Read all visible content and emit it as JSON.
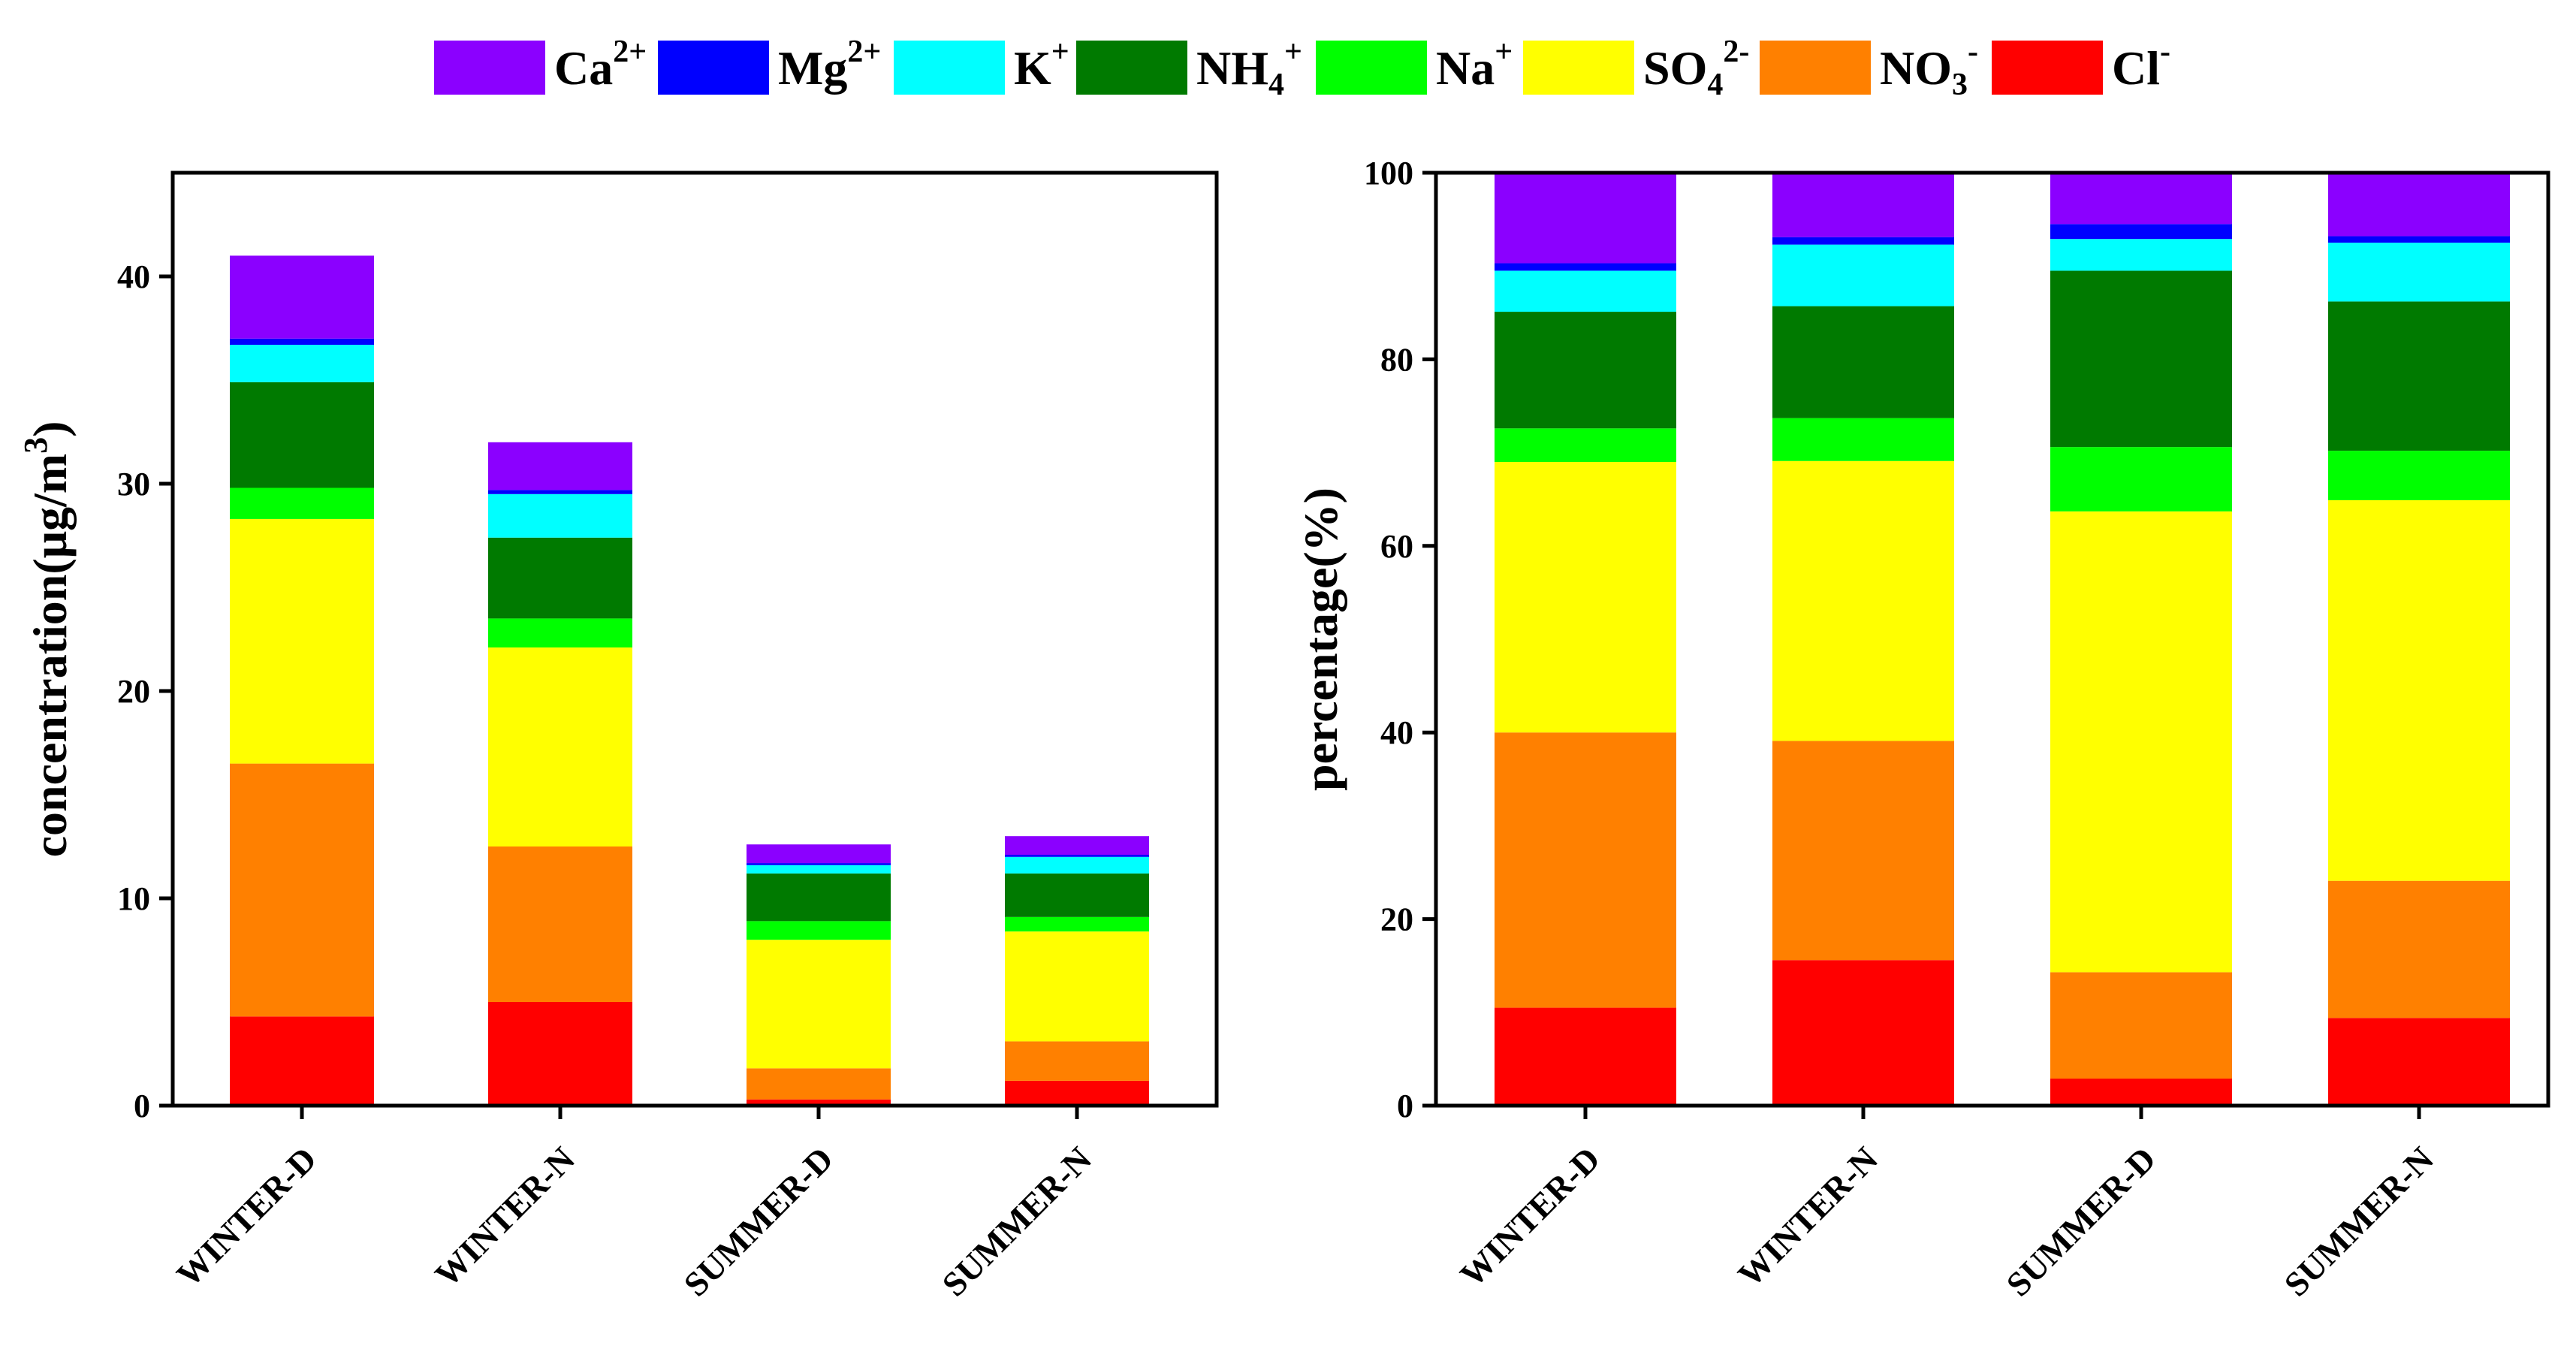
{
  "legend": [
    {
      "base": "Ca",
      "sub": "",
      "sup": "2+",
      "color": "#8B00FF"
    },
    {
      "base": "Mg",
      "sub": "",
      "sup": "2+",
      "color": "#0000FF"
    },
    {
      "base": "K",
      "sub": "",
      "sup": "+",
      "color": "#00FFFF"
    },
    {
      "base": "NH",
      "sub": "4",
      "sup": "+",
      "color": "#007A00"
    },
    {
      "base": "Na",
      "sub": "",
      "sup": "+",
      "color": "#00FF00"
    },
    {
      "base": "SO",
      "sub": "4",
      "sup": "2-",
      "color": "#FFFF00"
    },
    {
      "base": "NO",
      "sub": "3",
      "sup": "-",
      "color": "#FF8000"
    },
    {
      "base": "Cl",
      "sub": "",
      "sup": "-",
      "color": "#FF0000"
    }
  ],
  "chart_data": [
    {
      "type": "bar",
      "stacked": true,
      "title": "",
      "xlabel": "",
      "ylabel": "concentration(μg/m",
      "ylabel_sup": "3",
      "ylabel_tail": ")",
      "ylim": [
        0,
        45
      ],
      "yticks": [
        0,
        10,
        20,
        30,
        40
      ],
      "categories": [
        "WINTER-D",
        "WINTER-N",
        "SUMMER-D",
        "SUMMER-N"
      ],
      "series": [
        {
          "name": "Cl-",
          "color": "#FF0000",
          "values": [
            4.3,
            5.0,
            0.3,
            1.2
          ]
        },
        {
          "name": "NO3-",
          "color": "#FF8000",
          "values": [
            12.2,
            7.5,
            1.5,
            1.9
          ]
        },
        {
          "name": "SO42-",
          "color": "#FFFF00",
          "values": [
            11.8,
            9.6,
            6.2,
            5.3
          ]
        },
        {
          "name": "Na+",
          "color": "#00FF00",
          "values": [
            1.5,
            1.4,
            0.9,
            0.7
          ]
        },
        {
          "name": "NH4+",
          "color": "#007A00",
          "values": [
            5.1,
            3.9,
            2.3,
            2.1
          ]
        },
        {
          "name": "K+",
          "color": "#00FFFF",
          "values": [
            1.8,
            2.1,
            0.4,
            0.8
          ]
        },
        {
          "name": "Mg2+",
          "color": "#0000FF",
          "values": [
            0.3,
            0.2,
            0.1,
            0.1
          ]
        },
        {
          "name": "Ca2+",
          "color": "#8B00FF",
          "values": [
            4.0,
            2.3,
            0.9,
            0.9
          ]
        }
      ]
    },
    {
      "type": "bar",
      "stacked": true,
      "title": "",
      "xlabel": "",
      "ylabel": "percentage(%)",
      "ylim": [
        0,
        100
      ],
      "yticks": [
        0,
        20,
        40,
        60,
        80,
        100
      ],
      "categories": [
        "WINTER-D",
        "WINTER-N",
        "SUMMER-D",
        "SUMMER-N"
      ],
      "series": [
        {
          "name": "Cl-",
          "color": "#FF0000",
          "values": [
            10.5,
            15.6,
            2.9,
            9.4
          ]
        },
        {
          "name": "NO3-",
          "color": "#FF8000",
          "values": [
            29.5,
            23.5,
            11.4,
            14.7
          ]
        },
        {
          "name": "SO42-",
          "color": "#FFFF00",
          "values": [
            29.0,
            30.0,
            49.4,
            40.8
          ]
        },
        {
          "name": "Na+",
          "color": "#00FF00",
          "values": [
            3.6,
            4.6,
            6.9,
            5.3
          ]
        },
        {
          "name": "NH4+",
          "color": "#007A00",
          "values": [
            12.5,
            12.0,
            18.9,
            16.0
          ]
        },
        {
          "name": "K+",
          "color": "#00FFFF",
          "values": [
            4.4,
            6.6,
            3.4,
            6.3
          ]
        },
        {
          "name": "Mg2+",
          "color": "#0000FF",
          "values": [
            0.8,
            0.8,
            1.6,
            0.7
          ]
        },
        {
          "name": "Ca2+",
          "color": "#8B00FF",
          "values": [
            9.7,
            6.9,
            5.5,
            6.8
          ]
        }
      ]
    }
  ]
}
